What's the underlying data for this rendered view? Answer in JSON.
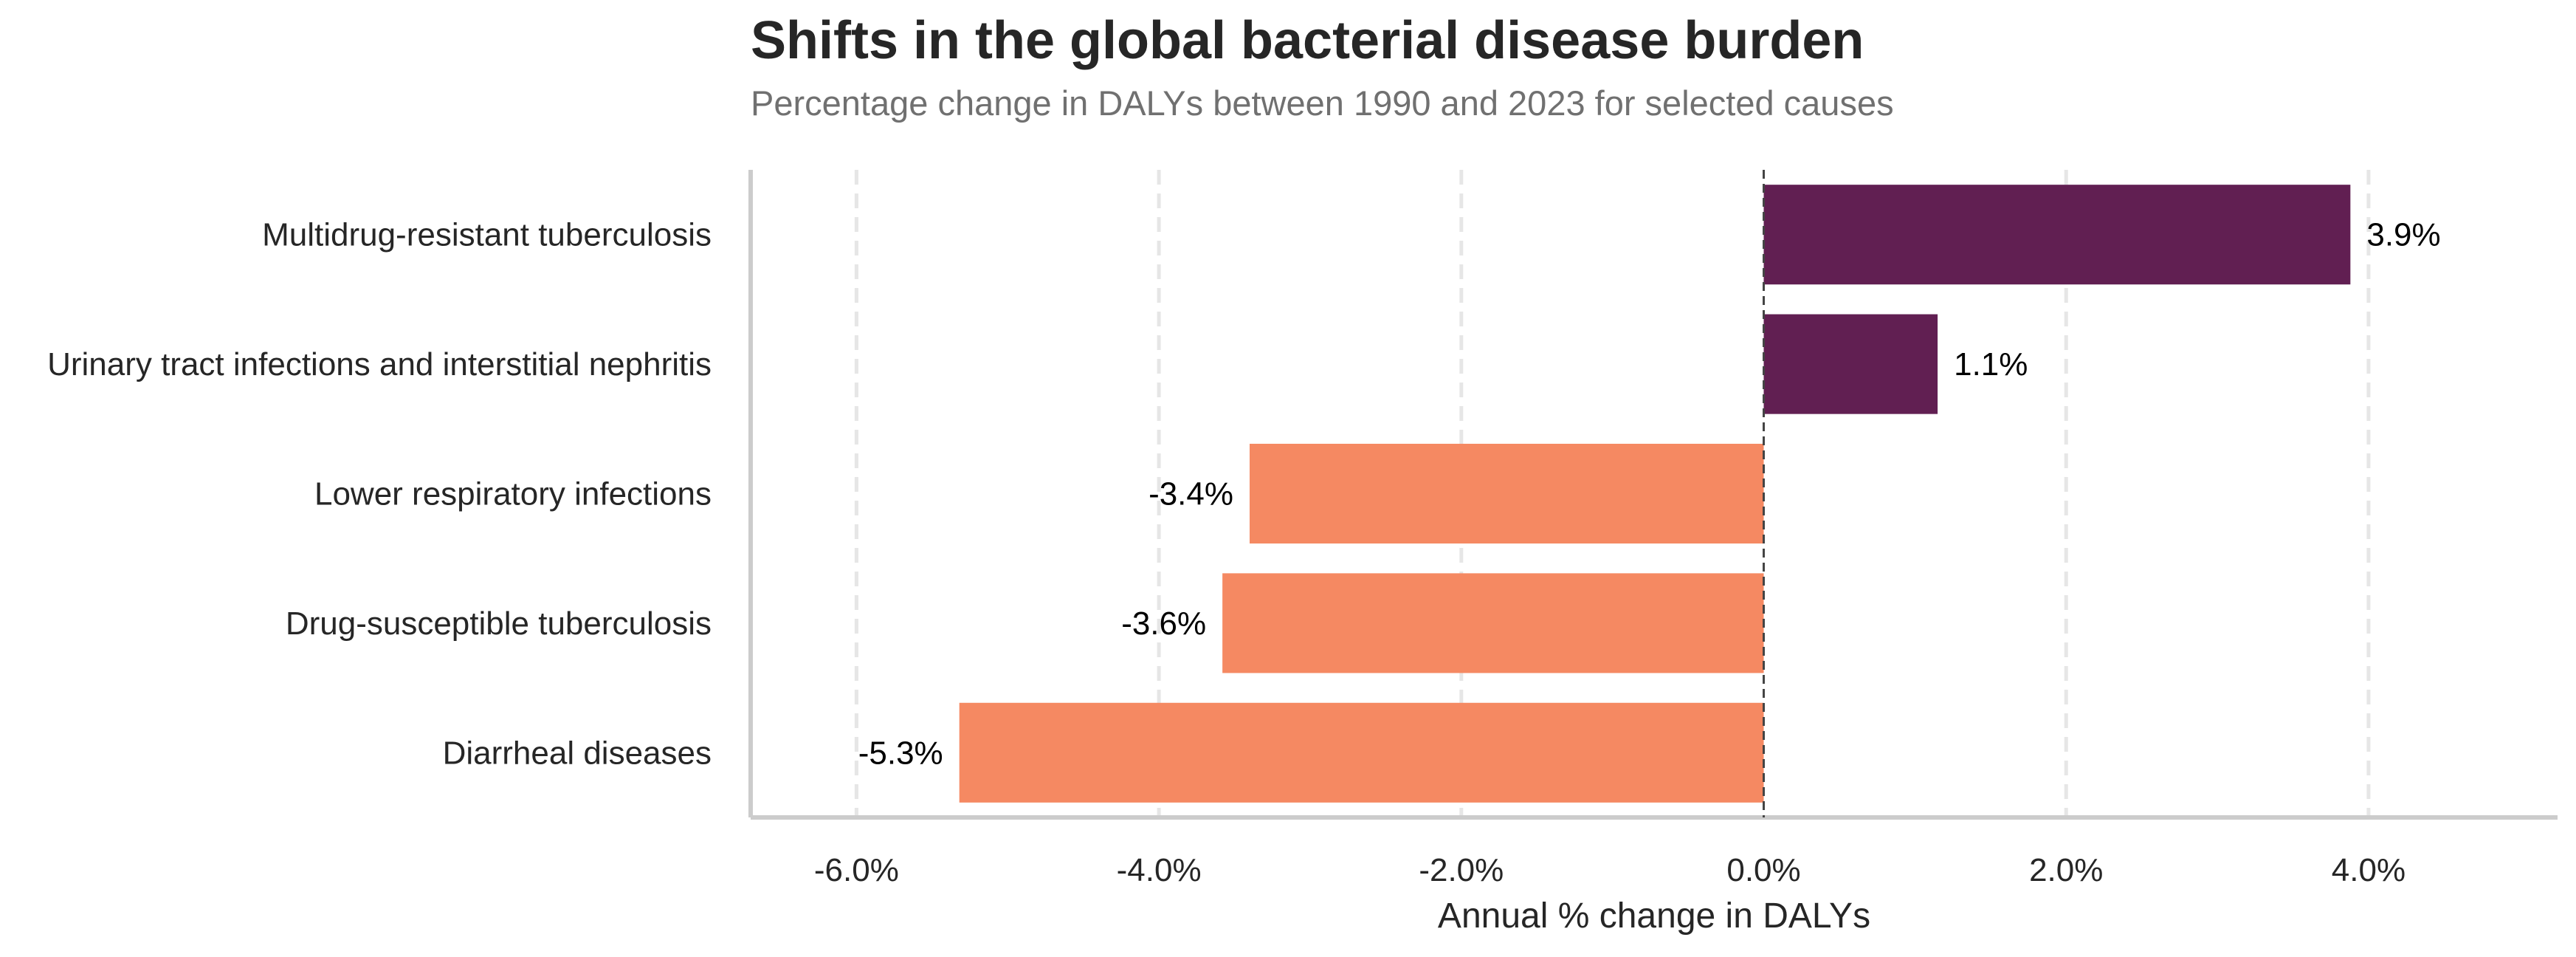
{
  "title": "Shifts in the global bacterial disease burden",
  "subtitle": "Percentage change in DALYs between 1990 and 2023 for selected causes",
  "chart_data": {
    "type": "bar",
    "orientation": "horizontal",
    "title": "Shifts in the global bacterial disease burden",
    "subtitle": "Percentage change in DALYs between 1990 and 2023 for selected causes",
    "xlabel": "Annual % change in DALYs",
    "ylabel": "",
    "categories": [
      "Multidrug-resistant tuberculosis",
      "Urinary tract infections and interstitial nephritis",
      "Lower respiratory infections",
      "Drug-susceptible tuberculosis",
      "Diarrheal diseases"
    ],
    "values": [
      3.88,
      1.15,
      -3.4,
      -3.58,
      -5.32
    ],
    "data_labels": [
      "3.9%",
      "1.1%",
      "-3.4%",
      "-3.6%",
      "-5.3%"
    ],
    "xlim": [
      -6.7,
      5.25
    ],
    "xticks": [
      -6,
      -4,
      -2,
      0,
      2,
      4
    ],
    "xtick_labels": [
      "-6.0%",
      "-4.0%",
      "-2.0%",
      "0.0%",
      "2.0%",
      "4.0%"
    ],
    "grid": "vertical dashed",
    "reference_line": 0,
    "colors": {
      "positive": "#611f52",
      "negative": "#f58962",
      "grid": "#e6e6e6",
      "axis": "#cccccc",
      "zero_line": "#444444"
    }
  }
}
